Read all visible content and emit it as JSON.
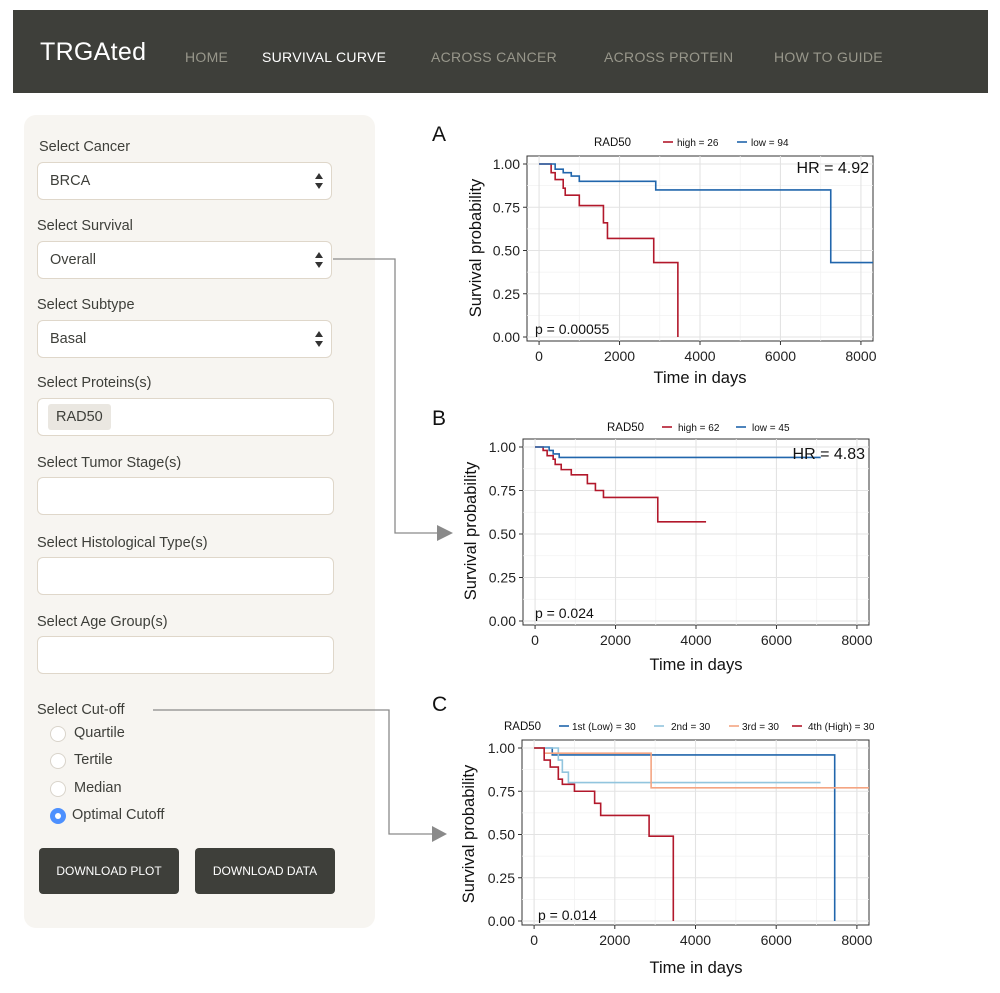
{
  "nav": {
    "brand": "TRGAted",
    "items": [
      "HOME",
      "SURVIVAL CURVE",
      "ACROSS CANCER",
      "ACROSS PROTEIN",
      "HOW TO GUIDE"
    ],
    "active": "SURVIVAL CURVE"
  },
  "sidebar": {
    "cancer": {
      "label": "Select Cancer",
      "value": "BRCA"
    },
    "survival": {
      "label": "Select Survival",
      "value": "Overall"
    },
    "subtype": {
      "label": "Select Subtype",
      "value": "Basal"
    },
    "proteins": {
      "label": "Select Proteins(s)",
      "value": "RAD50"
    },
    "tumor_stage": {
      "label": "Select Tumor Stage(s)",
      "value": ""
    },
    "histological": {
      "label": "Select Histological Type(s)",
      "value": ""
    },
    "age_group": {
      "label": "Select Age Group(s)",
      "value": ""
    },
    "cutoff": {
      "label": "Select Cut-off",
      "options": [
        "Quartile",
        "Tertile",
        "Median",
        "Optimal Cutoff"
      ],
      "selected": "Optimal Cutoff"
    },
    "download_plot": "DOWNLOAD PLOT",
    "download_data": "DOWNLOAD DATA"
  },
  "chart_data": [
    {
      "panel": "A",
      "type": "line",
      "legend_title": "RAD50",
      "legend_position": "top",
      "xlabel": "Time in days",
      "ylabel": "Survival probability",
      "xlim": [
        -300,
        8300
      ],
      "ylim": [
        0,
        1
      ],
      "xticks": [
        "0",
        "2000",
        "4000",
        "6000",
        "8000"
      ],
      "yticks": [
        "0.00",
        "0.25",
        "0.50",
        "0.75",
        "1.00"
      ],
      "grid": true,
      "hr_label": "HR = 4.92",
      "p_label": "p = 0.00055",
      "series": [
        {
          "name": "high = 26",
          "color": "#b2182b",
          "steps": [
            [
              0,
              1.0
            ],
            [
              300,
              0.95
            ],
            [
              400,
              0.91
            ],
            [
              600,
              0.86
            ],
            [
              650,
              0.82
            ],
            [
              1000,
              0.76
            ],
            [
              1600,
              0.66
            ],
            [
              1700,
              0.57
            ],
            [
              2850,
              0.43
            ],
            [
              3450,
              0.0
            ]
          ]
        },
        {
          "name": "low = 94",
          "color": "#2166ac",
          "steps": [
            [
              0,
              1.0
            ],
            [
              400,
              0.97
            ],
            [
              600,
              0.95
            ],
            [
              800,
              0.93
            ],
            [
              1000,
              0.9
            ],
            [
              2900,
              0.85
            ],
            [
              7250,
              0.43
            ],
            [
              8300,
              0.43
            ]
          ]
        }
      ]
    },
    {
      "panel": "B",
      "type": "line",
      "legend_title": "RAD50",
      "legend_position": "top",
      "xlabel": "Time in days",
      "ylabel": "Survival probability",
      "xlim": [
        -300,
        8300
      ],
      "ylim": [
        0,
        1
      ],
      "xticks": [
        "0",
        "2000",
        "4000",
        "6000",
        "8000"
      ],
      "yticks": [
        "0.00",
        "0.25",
        "0.50",
        "0.75",
        "1.00"
      ],
      "grid": true,
      "hr_label": "HR = 4.83",
      "p_label": "p = 0.024",
      "series": [
        {
          "name": "high = 62",
          "color": "#b2182b",
          "steps": [
            [
              0,
              1.0
            ],
            [
              200,
              0.98
            ],
            [
              300,
              0.95
            ],
            [
              450,
              0.93
            ],
            [
              500,
              0.9
            ],
            [
              650,
              0.87
            ],
            [
              900,
              0.84
            ],
            [
              1300,
              0.79
            ],
            [
              1500,
              0.75
            ],
            [
              1700,
              0.71
            ],
            [
              3050,
              0.57
            ],
            [
              4250,
              0.57
            ]
          ]
        },
        {
          "name": "low = 45",
          "color": "#2166ac",
          "steps": [
            [
              0,
              1.0
            ],
            [
              350,
              0.98
            ],
            [
              450,
              0.96
            ],
            [
              600,
              0.94
            ],
            [
              7100,
              0.94
            ]
          ]
        }
      ]
    },
    {
      "panel": "C",
      "type": "line",
      "legend_title": "RAD50",
      "legend_position": "top",
      "xlabel": "Time in days",
      "ylabel": "Survival probability",
      "xlim": [
        -300,
        8300
      ],
      "ylim": [
        0,
        1
      ],
      "xticks": [
        "0",
        "2000",
        "4000",
        "6000",
        "8000"
      ],
      "yticks": [
        "0.00",
        "0.25",
        "0.50",
        "0.75",
        "1.00"
      ],
      "grid": true,
      "p_label": "p = 0.014",
      "series": [
        {
          "name": "1st (Low) = 30",
          "color": "#2166ac",
          "steps": [
            [
              0,
              1.0
            ],
            [
              450,
              0.96
            ],
            [
              7450,
              0.0
            ]
          ]
        },
        {
          "name": "2nd = 30",
          "color": "#92c5de",
          "steps": [
            [
              0,
              1.0
            ],
            [
              600,
              0.93
            ],
            [
              700,
              0.86
            ],
            [
              850,
              0.8
            ],
            [
              7100,
              0.8
            ]
          ]
        },
        {
          "name": "3rd = 30",
          "color": "#f4a582",
          "steps": [
            [
              0,
              1.0
            ],
            [
              250,
              0.97
            ],
            [
              2900,
              0.77
            ],
            [
              8300,
              0.77
            ]
          ]
        },
        {
          "name": "4th (High) = 30",
          "color": "#b2182b",
          "steps": [
            [
              0,
              1.0
            ],
            [
              250,
              0.93
            ],
            [
              400,
              0.89
            ],
            [
              600,
              0.82
            ],
            [
              700,
              0.79
            ],
            [
              1000,
              0.75
            ],
            [
              1500,
              0.68
            ],
            [
              1650,
              0.61
            ],
            [
              2850,
              0.49
            ],
            [
              3450,
              0.0
            ]
          ]
        }
      ]
    }
  ]
}
